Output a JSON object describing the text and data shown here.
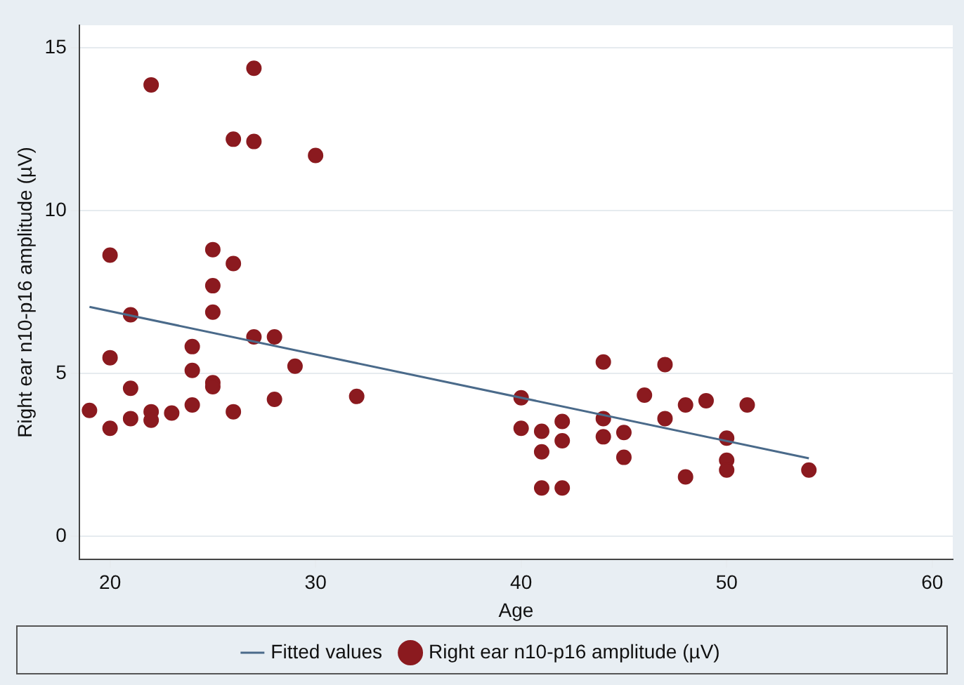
{
  "chart_data": {
    "type": "scatter",
    "xlabel": "Age",
    "ylabel": "Right ear n10-p16 amplitude (µV)",
    "xlim": [
      18.5,
      61
    ],
    "xticks": [
      20,
      30,
      40,
      50,
      60
    ],
    "ylim": [
      -0.7,
      15.7
    ],
    "yticks": [
      0,
      5,
      10,
      15
    ],
    "grid": "y",
    "legend": "bottom",
    "marker": "circle",
    "series": [
      {
        "name": "Fitted values",
        "type": "line",
        "color": "#4a6a8a",
        "marker": "none",
        "x": [
          19,
          54
        ],
        "values": [
          7.05,
          2.4
        ]
      },
      {
        "name": "Right ear n10-p16 amplitude (µV)",
        "type": "scatter",
        "color": "#8b1a1f",
        "x": [
          19,
          20,
          20,
          20,
          21,
          21,
          21,
          22,
          22,
          22,
          23,
          24,
          24,
          24,
          25,
          25,
          25,
          25,
          25,
          26,
          26,
          26,
          27,
          27,
          27,
          28,
          28,
          29,
          30,
          32,
          40,
          40,
          41,
          41,
          41,
          42,
          42,
          42,
          44,
          44,
          44,
          45,
          45,
          46,
          47,
          47,
          48,
          48,
          49,
          50,
          50,
          50,
          51,
          54
        ],
        "values": [
          3.87,
          8.64,
          5.49,
          3.32,
          6.81,
          4.55,
          3.62,
          13.87,
          3.83,
          3.57,
          3.79,
          5.83,
          5.1,
          4.04,
          8.81,
          7.7,
          6.89,
          4.72,
          4.6,
          12.2,
          8.38,
          3.83,
          14.38,
          12.13,
          6.13,
          6.13,
          4.21,
          5.23,
          11.7,
          4.3,
          4.26,
          3.32,
          3.23,
          2.6,
          1.49,
          3.53,
          2.94,
          1.49,
          5.36,
          3.62,
          3.06,
          3.19,
          2.43,
          4.34,
          5.28,
          3.62,
          4.04,
          1.83,
          4.17,
          3.02,
          2.34,
          2.04,
          4.04,
          2.04
        ]
      }
    ]
  }
}
